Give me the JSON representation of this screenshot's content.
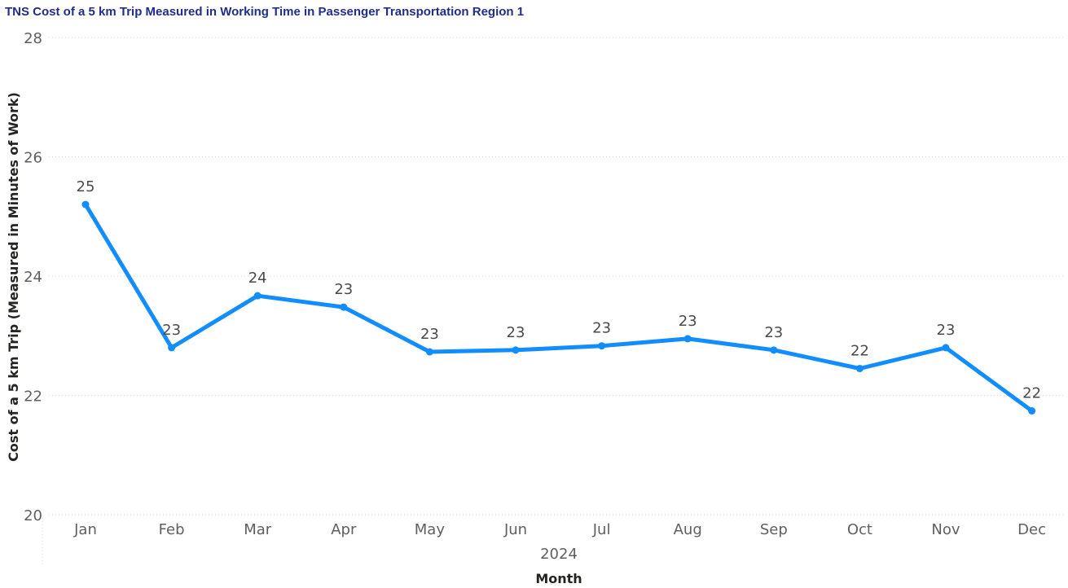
{
  "chart_data": {
    "type": "line",
    "title": "TNS Cost of a 5 km Trip Measured in Working Time in Passenger Transportation Region 1",
    "xlabel": "Month",
    "x_group_label": "2024",
    "ylabel": "Cost of a 5 km Trip (Measured in Minutes of Work)",
    "categories": [
      "Jan",
      "Feb",
      "Mar",
      "Apr",
      "May",
      "Jun",
      "Jul",
      "Aug",
      "Sep",
      "Oct",
      "Nov",
      "Dec"
    ],
    "series": [
      {
        "values": [
          25.2,
          22.8,
          23.67,
          23.48,
          22.73,
          22.76,
          22.83,
          22.95,
          22.76,
          22.45,
          22.8,
          21.74
        ],
        "labels": [
          "25",
          "23",
          "24",
          "23",
          "23",
          "23",
          "23",
          "23",
          "23",
          "22",
          "23",
          "22"
        ],
        "color": "#118dff"
      }
    ],
    "ylim": [
      20,
      28
    ],
    "yticks": [
      20,
      22,
      24,
      26,
      28
    ],
    "grid": true,
    "legend": "none"
  }
}
